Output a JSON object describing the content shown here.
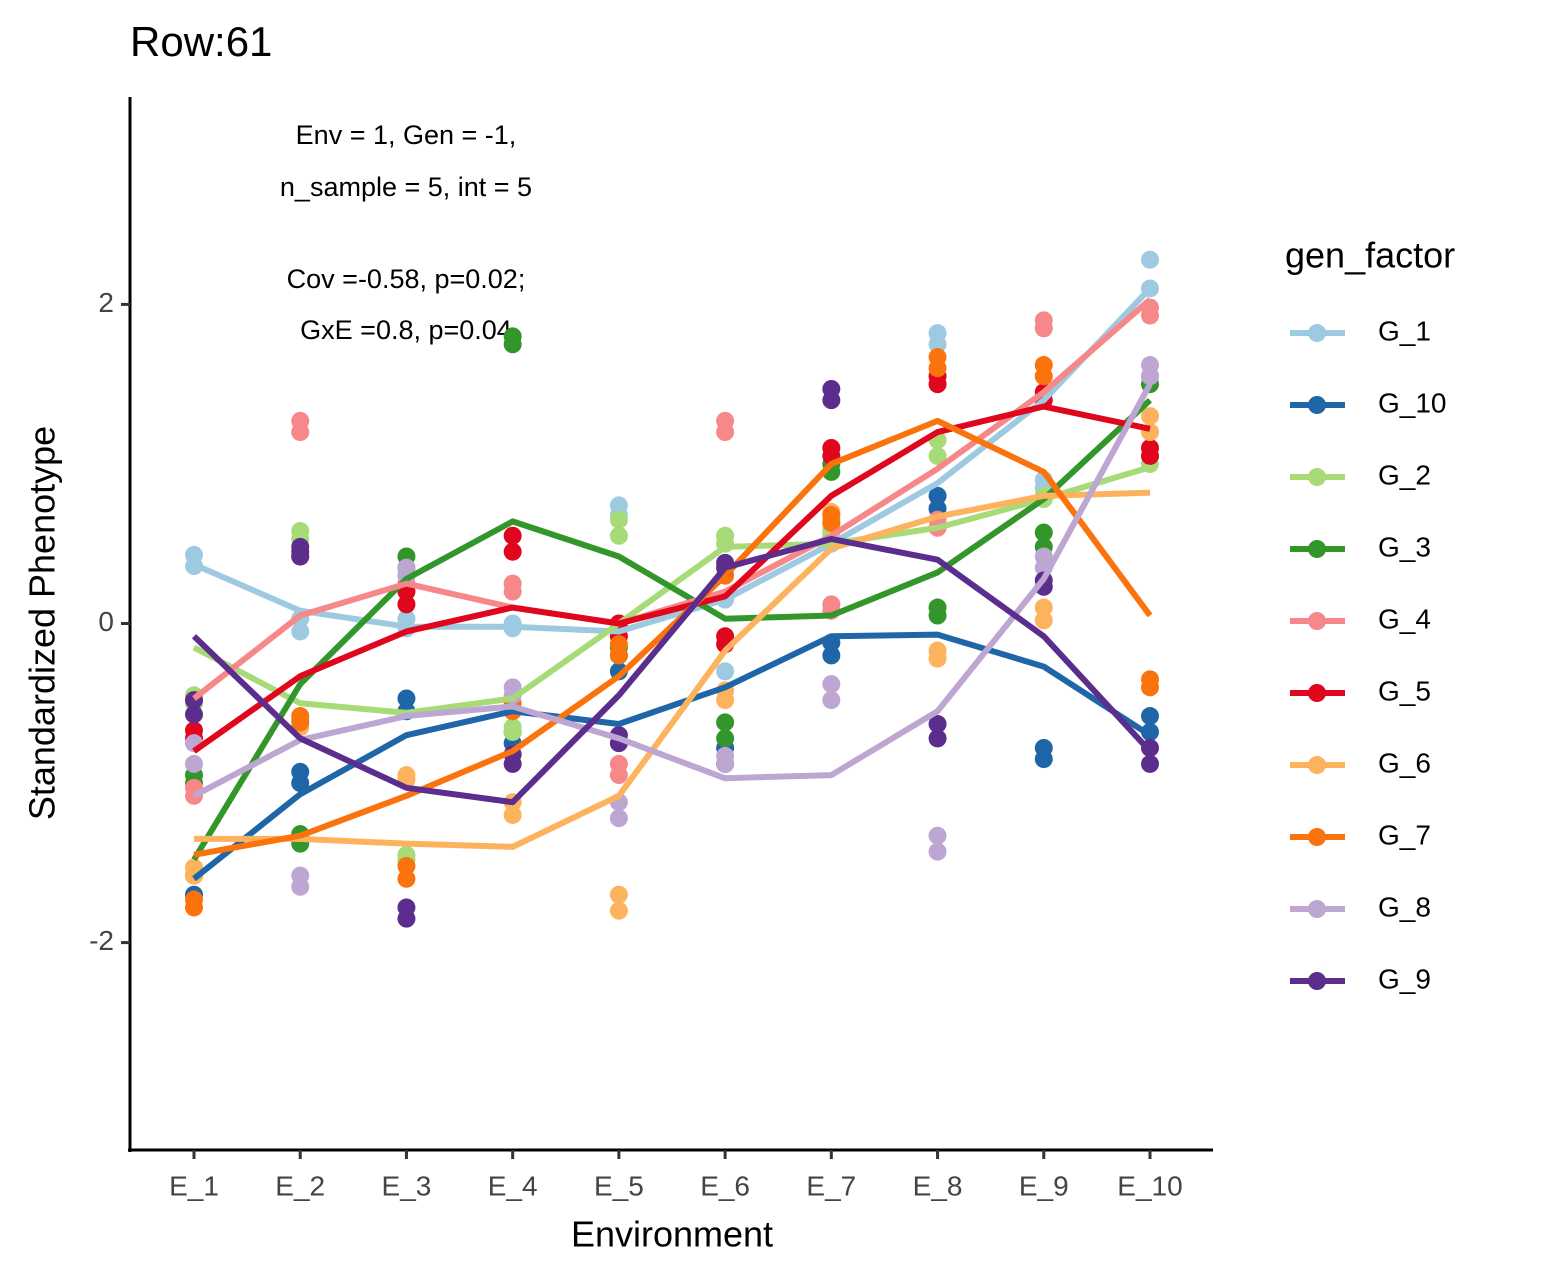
{
  "chart_data": {
    "type": "line",
    "title": "Row:61",
    "annotations": [
      "Env = 1, Gen = -1,",
      "n_sample = 5, int = 5",
      "Cov =-0.58, p=0.02;",
      "GxE =0.8, p=0.04"
    ],
    "x_label": "Environment",
    "y_label": "Standardized Phenotype",
    "legend_title": "gen_factor",
    "legend": "right",
    "categories": [
      "E_1",
      "E_2",
      "E_3",
      "E_4",
      "E_5",
      "E_6",
      "E_7",
      "E_8",
      "E_9",
      "E_10"
    ],
    "ylim": [
      -3.3,
      3.3
    ],
    "yticks": [
      -2,
      0,
      2
    ],
    "grid": false,
    "series": [
      {
        "name": "G_1",
        "color": "#9ecae1",
        "values": [
          0.37,
          0.08,
          -0.02,
          -0.02,
          -0.05,
          0.15,
          0.5,
          0.88,
          1.4,
          2.1
        ],
        "points": [
          [
            0.36,
            0.43
          ],
          [
            -0.05,
            0.03
          ],
          [
            -0.03,
            0.03
          ],
          [
            -0.03,
            0.0
          ],
          [
            0.68,
            0.74
          ],
          [
            -0.3,
            0.15
          ],
          [
            0.5,
            0.55
          ],
          [
            1.75,
            1.82
          ],
          [
            0.85,
            0.9
          ],
          [
            2.1,
            2.28
          ]
        ]
      },
      {
        "name": "G_10",
        "color": "#1f66a8",
        "values": [
          -1.6,
          -1.07,
          -0.7,
          -0.55,
          -0.63,
          -0.4,
          -0.08,
          -0.07,
          -0.27,
          -0.7
        ],
        "points": [
          [
            -1.7,
            -1.58
          ],
          [
            -1.0,
            -0.93
          ],
          [
            -0.55,
            -0.47
          ],
          [
            -0.75,
            -0.68
          ],
          [
            -0.3,
            -0.2
          ],
          [
            -0.88,
            -0.78
          ],
          [
            -0.2,
            -0.12
          ],
          [
            0.72,
            0.8
          ],
          [
            -0.85,
            -0.78
          ],
          [
            -0.68,
            -0.58
          ]
        ]
      },
      {
        "name": "G_2",
        "color": "#a6db78",
        "values": [
          -0.15,
          -0.5,
          -0.56,
          -0.47,
          0.0,
          0.48,
          0.5,
          0.6,
          0.78,
          0.98
        ],
        "points": [
          [
            -0.5,
            -0.45
          ],
          [
            0.53,
            0.58
          ],
          [
            -1.48,
            -1.45
          ],
          [
            -0.68,
            -0.65
          ],
          [
            0.55,
            0.65
          ],
          [
            0.5,
            0.55
          ],
          [
            0.58,
            0.62
          ],
          [
            1.05,
            1.15
          ],
          [
            0.78,
            0.8
          ],
          [
            1.0,
            1.05
          ]
        ]
      },
      {
        "name": "G_3",
        "color": "#33962a",
        "values": [
          -1.48,
          -0.38,
          0.28,
          0.64,
          0.42,
          0.03,
          0.05,
          0.32,
          0.78,
          1.4
        ],
        "points": [
          [
            -1.0,
            -0.95
          ],
          [
            -1.38,
            -1.32
          ],
          [
            0.35,
            0.42
          ],
          [
            1.75,
            1.8
          ],
          [
            -0.2,
            -0.15
          ],
          [
            -0.72,
            -0.62
          ],
          [
            0.95,
            1.0
          ],
          [
            0.05,
            0.1
          ],
          [
            0.48,
            0.57
          ],
          [
            1.5,
            1.55
          ]
        ]
      },
      {
        "name": "G_4",
        "color": "#f7888a",
        "values": [
          -0.47,
          0.05,
          0.25,
          0.1,
          0.0,
          0.2,
          0.55,
          0.97,
          1.45,
          2.03
        ],
        "points": [
          [
            -1.08,
            -1.03
          ],
          [
            1.2,
            1.27
          ],
          [
            0.25,
            0.3
          ],
          [
            0.2,
            0.25
          ],
          [
            -0.95,
            -0.88
          ],
          [
            1.2,
            1.27
          ],
          [
            0.08,
            0.12
          ],
          [
            0.6,
            0.65
          ],
          [
            1.85,
            1.9
          ],
          [
            1.93,
            1.98
          ]
        ]
      },
      {
        "name": "G_5",
        "color": "#e0061d",
        "values": [
          -0.8,
          -0.33,
          -0.05,
          0.1,
          0.0,
          0.17,
          0.8,
          1.2,
          1.36,
          1.22
        ],
        "points": [
          [
            -0.72,
            -0.67
          ],
          [
            0.42,
            0.45
          ],
          [
            0.12,
            0.2
          ],
          [
            0.45,
            0.55
          ],
          [
            -0.08,
            0.0
          ],
          [
            -0.13,
            -0.08
          ],
          [
            1.05,
            1.1
          ],
          [
            1.5,
            1.55
          ],
          [
            1.4,
            1.45
          ],
          [
            1.05,
            1.1
          ]
        ]
      },
      {
        "name": "G_6",
        "color": "#fdb25e",
        "values": [
          -1.35,
          -1.35,
          -1.38,
          -1.4,
          -1.08,
          -0.17,
          0.47,
          0.67,
          0.8,
          0.82
        ],
        "points": [
          [
            -1.58,
            -1.53
          ],
          [
            -0.65,
            -0.6
          ],
          [
            -0.98,
            -0.95
          ],
          [
            -1.2,
            -1.12
          ],
          [
            -1.8,
            -1.7
          ],
          [
            -0.48,
            -0.42
          ],
          [
            0.65,
            0.7
          ],
          [
            -0.22,
            -0.17
          ],
          [
            0.02,
            0.1
          ],
          [
            1.2,
            1.3
          ]
        ]
      },
      {
        "name": "G_7",
        "color": "#fb730c",
        "values": [
          -1.45,
          -1.33,
          -1.08,
          -0.8,
          -0.33,
          0.3,
          1.0,
          1.27,
          0.95,
          0.05
        ],
        "points": [
          [
            -1.78,
            -1.73
          ],
          [
            -0.62,
            -0.58
          ],
          [
            -1.6,
            -1.52
          ],
          [
            -0.55,
            -0.5
          ],
          [
            -0.2,
            -0.13
          ],
          [
            0.3,
            0.35
          ],
          [
            0.63,
            0.68
          ],
          [
            1.6,
            1.67
          ],
          [
            1.55,
            1.62
          ],
          [
            -0.4,
            -0.35
          ]
        ]
      },
      {
        "name": "G_8",
        "color": "#bea6d3",
        "values": [
          -1.08,
          -0.73,
          -0.58,
          -0.52,
          -0.72,
          -0.97,
          -0.95,
          -0.55,
          0.28,
          1.5
        ],
        "points": [
          [
            -0.88,
            -0.75
          ],
          [
            -1.65,
            -1.58
          ],
          [
            0.3,
            0.35
          ],
          [
            -0.45,
            -0.4
          ],
          [
            -1.22,
            -1.12
          ],
          [
            -0.88,
            -0.83
          ],
          [
            -0.48,
            -0.38
          ],
          [
            -1.43,
            -1.33
          ],
          [
            0.35,
            0.42
          ],
          [
            1.55,
            1.62
          ]
        ]
      },
      {
        "name": "G_9",
        "color": "#5b2d8c",
        "values": [
          -0.08,
          -0.72,
          -1.03,
          -1.12,
          -0.45,
          0.35,
          0.53,
          0.4,
          -0.08,
          -0.8
        ],
        "points": [
          [
            -0.57,
            -0.48
          ],
          [
            0.42,
            0.48
          ],
          [
            -1.85,
            -1.78
          ],
          [
            -0.88,
            -0.82
          ],
          [
            -0.75,
            -0.7
          ],
          [
            0.35,
            0.38
          ],
          [
            1.4,
            1.47
          ],
          [
            -0.72,
            -0.63
          ],
          [
            0.23,
            0.27
          ],
          [
            -0.88,
            -0.78
          ]
        ]
      }
    ]
  }
}
